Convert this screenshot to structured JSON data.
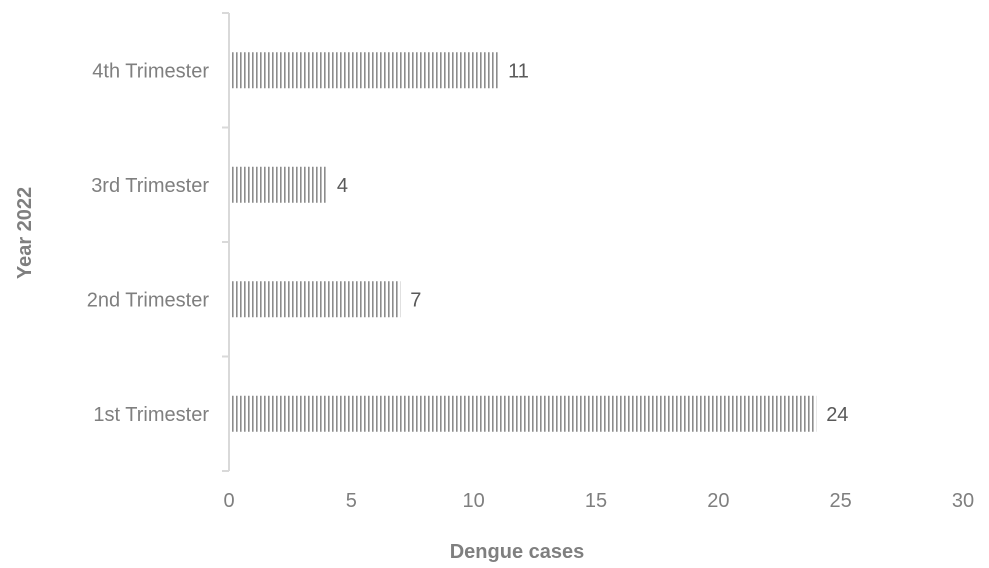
{
  "chart_data": {
    "type": "bar",
    "orientation": "horizontal",
    "categories": [
      "1st Trimester",
      "2nd Trimester",
      "3rd Trimester",
      "4th Trimester"
    ],
    "values": [
      24,
      7,
      4,
      11
    ],
    "data_labels": [
      "24",
      "7",
      "4",
      "11"
    ],
    "xlabel": "Dengue cases",
    "ylabel": "Year 2022",
    "xlim": [
      0,
      30
    ],
    "xticks": [
      "0",
      "5",
      "10",
      "15",
      "20",
      "25",
      "30"
    ],
    "grid": false,
    "legend": "none",
    "bar_pattern": "vertical-stripes",
    "colors": {
      "bar_fill": "#ffffff",
      "bar_stripe": "#8c8c8c",
      "axis": "#d9d9d9",
      "text": "#7f7f7f",
      "data_label": "#595959"
    }
  }
}
